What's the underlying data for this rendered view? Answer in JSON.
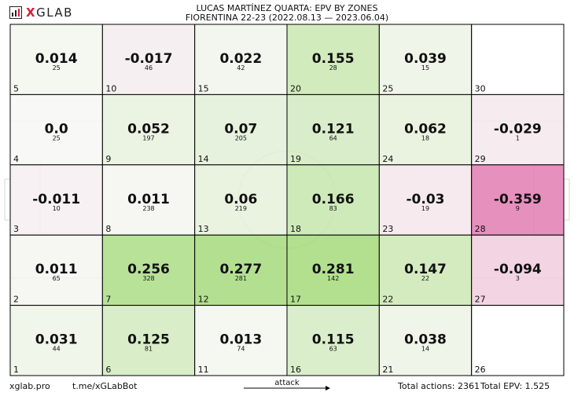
{
  "header": {
    "logo_text": "GLAB",
    "logo_mark": "X",
    "title_line1": "LUCAS MARTÍNEZ QUARTA: EPV BY ZONES",
    "title_line2": "FIORENTINA 22-23 (2022.08.13 — 2023.06.04)"
  },
  "footer": {
    "site": "xglab.pro",
    "bot": "t.me/xGLabBot",
    "attack": "attack",
    "total_actions": "Total actions: 2361",
    "total_epv": "Total EPV: 1.525"
  },
  "colors": {
    "positive": "#9fd873",
    "negative": "#e27db3",
    "neutral": "#f7f7f5",
    "line": "#000000",
    "pitch_lines": "#d6d6d6"
  },
  "chart_data": {
    "type": "heatmap",
    "columns": 6,
    "rows": 5,
    "zones": [
      {
        "zone": 5,
        "epv": "0.014",
        "actions": "25"
      },
      {
        "zone": 10,
        "epv": "-0.017",
        "actions": "46"
      },
      {
        "zone": 15,
        "epv": "0.022",
        "actions": "42"
      },
      {
        "zone": 20,
        "epv": "0.155",
        "actions": "28"
      },
      {
        "zone": 25,
        "epv": "0.039",
        "actions": "15"
      },
      {
        "zone": 30,
        "epv": "",
        "actions": ""
      },
      {
        "zone": 4,
        "epv": "0.0",
        "actions": "25"
      },
      {
        "zone": 9,
        "epv": "0.052",
        "actions": "197"
      },
      {
        "zone": 14,
        "epv": "0.07",
        "actions": "205"
      },
      {
        "zone": 19,
        "epv": "0.121",
        "actions": "64"
      },
      {
        "zone": 24,
        "epv": "0.062",
        "actions": "18"
      },
      {
        "zone": 29,
        "epv": "-0.029",
        "actions": "1"
      },
      {
        "zone": 3,
        "epv": "-0.011",
        "actions": "10"
      },
      {
        "zone": 8,
        "epv": "0.011",
        "actions": "238"
      },
      {
        "zone": 13,
        "epv": "0.06",
        "actions": "219"
      },
      {
        "zone": 18,
        "epv": "0.166",
        "actions": "83"
      },
      {
        "zone": 23,
        "epv": "-0.03",
        "actions": "19"
      },
      {
        "zone": 28,
        "epv": "-0.359",
        "actions": "9"
      },
      {
        "zone": 2,
        "epv": "0.011",
        "actions": "65"
      },
      {
        "zone": 7,
        "epv": "0.256",
        "actions": "328"
      },
      {
        "zone": 12,
        "epv": "0.277",
        "actions": "281"
      },
      {
        "zone": 17,
        "epv": "0.281",
        "actions": "142"
      },
      {
        "zone": 22,
        "epv": "0.147",
        "actions": "22"
      },
      {
        "zone": 27,
        "epv": "-0.094",
        "actions": "3"
      },
      {
        "zone": 1,
        "epv": "0.031",
        "actions": "44"
      },
      {
        "zone": 6,
        "epv": "0.125",
        "actions": "81"
      },
      {
        "zone": 11,
        "epv": "0.013",
        "actions": "74"
      },
      {
        "zone": 16,
        "epv": "0.115",
        "actions": "63"
      },
      {
        "zone": 21,
        "epv": "0.038",
        "actions": "14"
      },
      {
        "zone": 26,
        "epv": "",
        "actions": ""
      }
    ]
  }
}
